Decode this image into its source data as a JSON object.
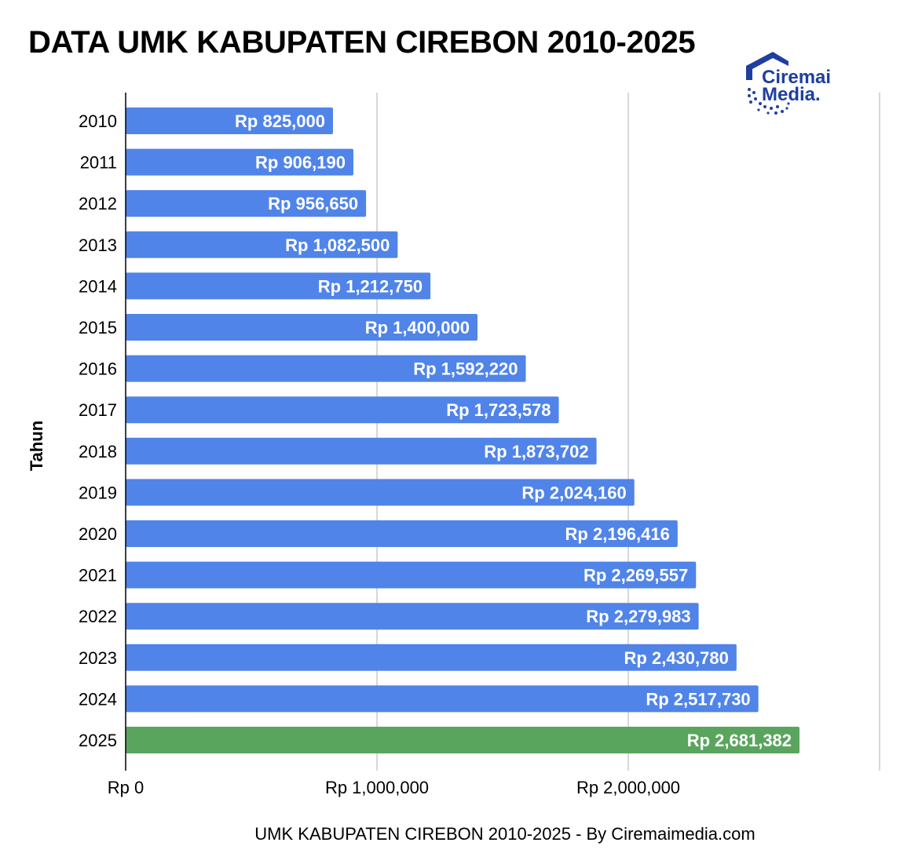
{
  "title": "DATA UMK KABUPATEN CIREBON 2010-2025",
  "logo": {
    "line1": "Ciremai",
    "line2": "Media.",
    "color": "#1e3f9e"
  },
  "colors": {
    "bar": "#5084e8",
    "highlight": "#5aa55e",
    "grid": "#cccccc",
    "axis": "#000000"
  },
  "chart_data": {
    "type": "bar",
    "orientation": "horizontal",
    "title": "DATA UMK KABUPATEN CIREBON 2010-2025",
    "xlabel": "UMK KABUPATEN CIREBON 2010-2025 - By Ciremaimedia.com",
    "ylabel": "Tahun",
    "categories": [
      "2010",
      "2011",
      "2012",
      "2013",
      "2014",
      "2015",
      "2016",
      "2017",
      "2018",
      "2019",
      "2020",
      "2021",
      "2022",
      "2023",
      "2024",
      "2025"
    ],
    "values": [
      825000,
      906190,
      956650,
      1082500,
      1212750,
      1400000,
      1592220,
      1723578,
      1873702,
      2024160,
      2196416,
      2269557,
      2279983,
      2430780,
      2517730,
      2681382
    ],
    "data_labels": [
      "Rp 825,000",
      "Rp 906,190",
      "Rp 956,650",
      "Rp 1,082,500",
      "Rp 1,212,750",
      "Rp 1,400,000",
      "Rp 1,592,220",
      "Rp 1,723,578",
      "Rp 1,873,702",
      "Rp 2,024,160",
      "Rp 2,196,416",
      "Rp 2,269,557",
      "Rp 2,279,983",
      "Rp 2,430,780",
      "Rp 2,517,730",
      "Rp 2,681,382"
    ],
    "highlight_category": "2025",
    "x_ticks": [
      0,
      1000000,
      2000000
    ],
    "x_tick_labels": [
      "Rp 0",
      "Rp 1,000,000",
      "Rp 2,000,000"
    ],
    "xlim": [
      0,
      3000000
    ],
    "grid": true,
    "legend": "none"
  }
}
